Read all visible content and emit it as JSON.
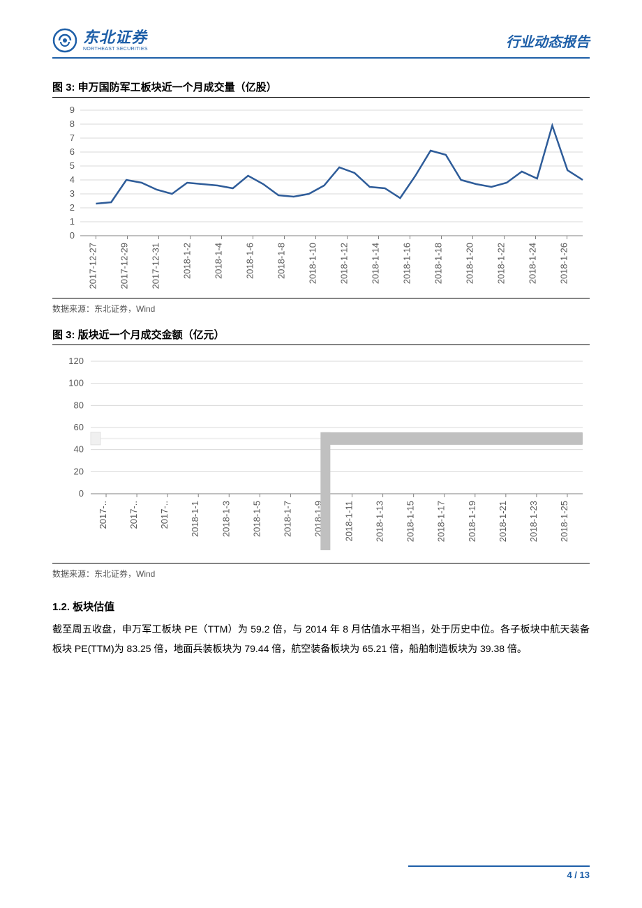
{
  "header": {
    "logo_cn": "东北证券",
    "logo_en": "NORTHEAST SECURITIES",
    "right_text": "行业动态报告"
  },
  "chart1": {
    "title": "图 3:  申万国防军工板块近一个月成交量（亿股）",
    "type": "line",
    "categories": [
      "2017-12-27",
      "2017-12-29",
      "2017-12-31",
      "2018-1-2",
      "2018-1-4",
      "2018-1-6",
      "2018-1-8",
      "2018-1-10",
      "2018-1-12",
      "2018-1-14",
      "2018-1-16",
      "2018-1-18",
      "2018-1-20",
      "2018-1-22",
      "2018-1-24",
      "2018-1-26"
    ],
    "values": [
      2.3,
      2.4,
      4.0,
      3.8,
      3.3,
      3.0,
      3.8,
      3.7,
      3.6,
      3.4,
      4.3,
      3.7,
      2.9,
      2.8,
      3.0,
      3.6,
      4.9,
      4.5,
      3.5,
      3.4,
      2.7,
      4.3,
      6.1,
      5.8,
      4.0,
      3.7,
      3.5,
      3.8,
      4.6,
      4.1,
      7.9,
      4.7,
      4.0
    ],
    "ylim": [
      0,
      9
    ],
    "ytick_step": 1,
    "line_color": "#2e5c99",
    "line_width": 2.5,
    "grid_color": "#d9d9d9",
    "axis_color": "#808080",
    "background_color": "#ffffff",
    "label_fontsize": 13,
    "tick_fontsize": 13,
    "source": "数据来源：东北证券，Wind"
  },
  "chart2": {
    "title": "图 3:  版块近一个月成交金额（亿元）",
    "type": "line",
    "categories": [
      "2017-..",
      "2017-..",
      "2017-..",
      "2018-1-1",
      "2018-1-3",
      "2018-1-5",
      "2018-1-7",
      "2018-1-9",
      "2018-1-11",
      "2018-1-13",
      "2018-1-15",
      "2018-1-17",
      "2018-1-19",
      "2018-1-21",
      "2018-1-23",
      "2018-1-25"
    ],
    "ylim": [
      0,
      120
    ],
    "ytick_step": 20,
    "grid_color": "#d9d9d9",
    "axis_color": "#808080",
    "background_color": "#ffffff",
    "label_fontsize": 13,
    "tick_fontsize": 13,
    "scrollbar_color": "#c0c0c0",
    "source": "数据来源：东北证券，Wind"
  },
  "section": {
    "heading": "1.2.  板块估值",
    "body": "截至周五收盘，申万军工板块 PE（TTM）为 59.2 倍，与 2014 年 8 月估值水平相当，处于历史中位。各子板块中航天装备板块 PE(TTM)为 83.25 倍，地面兵装板块为 79.44 倍，航空装备板块为 65.21 倍，船舶制造板块为 39.38 倍。"
  },
  "footer": {
    "page": "4 / 13"
  }
}
